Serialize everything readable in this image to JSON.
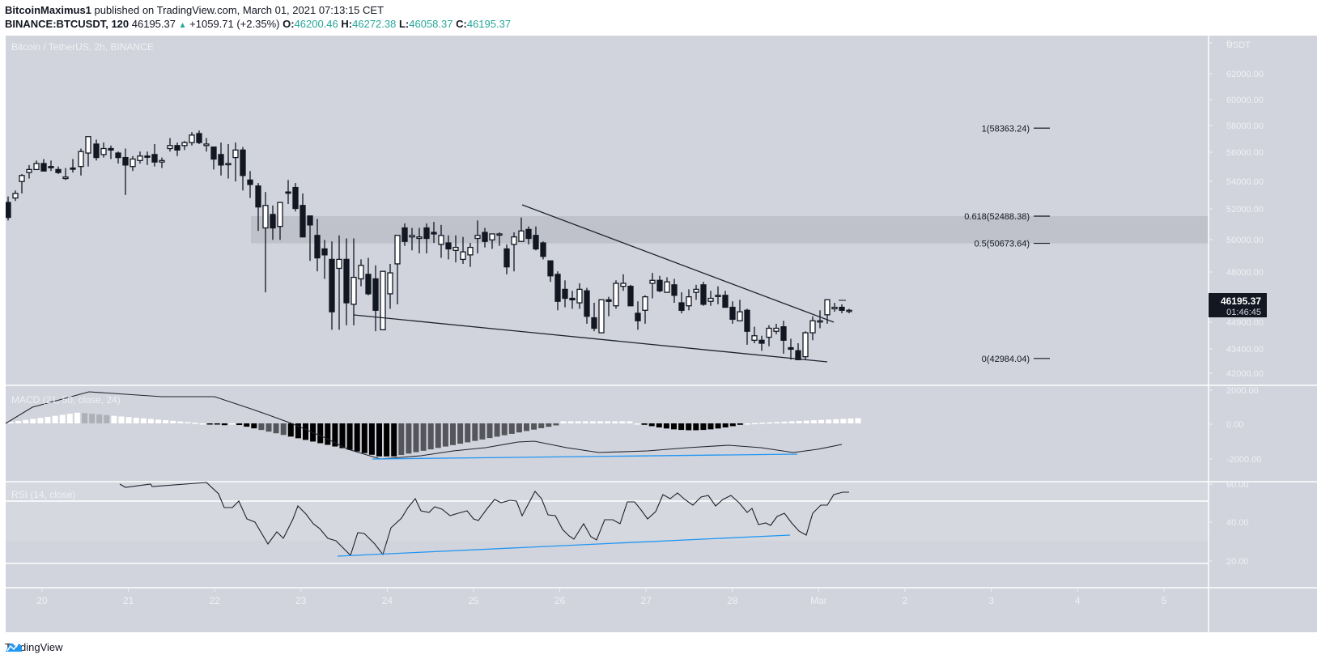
{
  "header": {
    "author": "BitcoinMaximus1",
    "published_text": "published on TradingView.com, March 01, 2021 07:13:15 CET",
    "symbol": "BINANCE:BTCUSDT, 120",
    "last": "46195.37",
    "change": "+1059.71 (+2.35%)",
    "open_label": "O:",
    "open": "46200.46",
    "high_label": "H:",
    "high": "46272.38",
    "low_label": "L:",
    "low": "46058.37",
    "close_label": "C:",
    "close": "46195.37"
  },
  "main_pane": {
    "title": "Bitcoin / TetherUS, 2h, BINANCE",
    "currency": "USDT",
    "price_label": "46195.37",
    "countdown": "01:46:45",
    "fib_levels": [
      {
        "label": "1(58363.24)",
        "value": 58363.24
      },
      {
        "label": "0.618(52488.38)",
        "value": 52488.38
      },
      {
        "label": "0.5(50673.64)",
        "value": 50673.64
      },
      {
        "label": "0(42984.04)",
        "value": 42984.04
      }
    ]
  },
  "macd_pane": {
    "title": "MACD (21, 50, close, 24)"
  },
  "rsi_pane": {
    "title": "RSI (14, close)"
  },
  "footer": {
    "brand": "TradingView"
  },
  "colors": {
    "background": "#d1d4dc",
    "bull": "#ffffff",
    "bear": "#131722",
    "divergence": "#2196f3",
    "accent_green": "#26a69a"
  },
  "chart_data": {
    "type": "candlestick",
    "title": "Bitcoin / TetherUS, 2h, BINANCE",
    "xlabel": "",
    "ylabel": "USDT",
    "x_ticks": [
      "20",
      "21",
      "22",
      "23",
      "24",
      "25",
      "26",
      "27",
      "28",
      "Mar",
      "2",
      "3",
      "4",
      "5"
    ],
    "y_ticks": [
      62000,
      60000,
      58000,
      56000,
      54000,
      52000,
      50000,
      48000,
      46500,
      44900,
      43400,
      42000
    ],
    "ylim": [
      41500,
      63500
    ],
    "resistance_zone": [
      50673.64,
      52488.38
    ],
    "trendlines": [
      {
        "name": "descending resistance",
        "from": [
          25.5,
          52300
        ],
        "to": [
          29.15,
          44900
        ]
      },
      {
        "name": "descending support",
        "from": [
          23.6,
          45200
        ],
        "to": [
          29.2,
          42800
        ]
      }
    ],
    "annotations": [
      "1(58363.24)",
      "0.618(52488.38)",
      "0.5(50673.64)",
      "0(42984.04)"
    ],
    "macd": {
      "title": "MACD (21, 50, close, 24)",
      "y_ticks": [
        2000,
        0,
        -2000
      ],
      "divergence_line": "rising lows"
    },
    "rsi": {
      "title": "RSI (14, close)",
      "y_ticks": [
        60,
        40,
        20
      ],
      "divergence_line": "rising lows from ~23 to ~33"
    }
  }
}
